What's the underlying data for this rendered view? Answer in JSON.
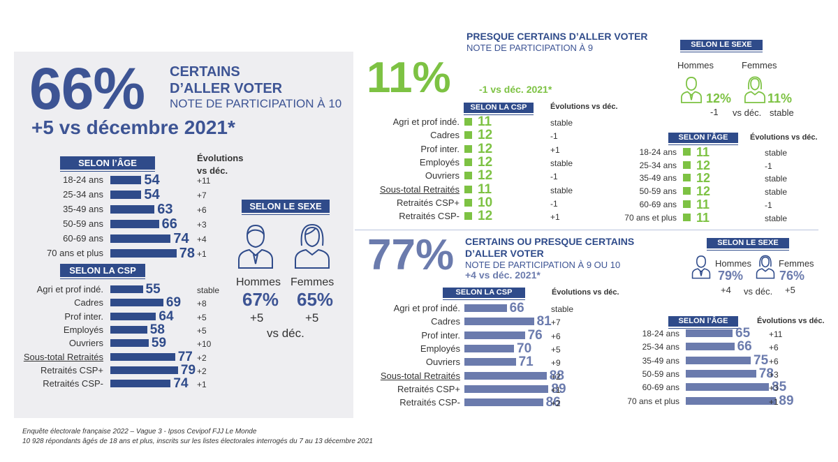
{
  "colors": {
    "navy": "#2f4b8a",
    "green": "#7dc243",
    "slate": "#6b7bad",
    "panel": "#eeeef1"
  },
  "certains": {
    "big": "66%",
    "title1": "CERTAINS",
    "title2": "D’ALLER VOTER",
    "subtitle": "NOTE DE PARTICIPATION À 10",
    "change": "+5 vs décembre 2021*",
    "age": {
      "header": "SELON l’ÂGE",
      "evo_header1": "Évolutions",
      "evo_header2": "vs déc.",
      "rows": [
        {
          "label": "18-24 ans",
          "value": 54,
          "evo": "+11"
        },
        {
          "label": "25-34 ans",
          "value": 54,
          "evo": "+7"
        },
        {
          "label": "35-49 ans",
          "value": 63,
          "evo": "+6"
        },
        {
          "label": "50-59 ans",
          "value": 66,
          "evo": "+3"
        },
        {
          "label": "60-69 ans",
          "value": 74,
          "evo": "+4"
        },
        {
          "label": "70 ans et plus",
          "value": 78,
          "evo": "+1"
        }
      ]
    },
    "csp": {
      "header": "SELON LA CSP",
      "rows": [
        {
          "label": "Agri et prof indé.",
          "value": 55,
          "evo": "stable"
        },
        {
          "label": "Cadres",
          "value": 69,
          "evo": "+8"
        },
        {
          "label": "Prof inter.",
          "value": 64,
          "evo": "+5"
        },
        {
          "label": "Employés",
          "value": 58,
          "evo": "+5"
        },
        {
          "label": "Ouvriers",
          "value": 59,
          "evo": "+10"
        },
        {
          "label": "Sous-total Retraités",
          "value": 77,
          "evo": "+2",
          "underline": true
        },
        {
          "label": "Retraités CSP+",
          "value": 79,
          "evo": "+2"
        },
        {
          "label": "Retraités CSP-",
          "value": 74,
          "evo": "+1"
        }
      ]
    },
    "sexe": {
      "header": "SELON LE SEXE",
      "hommes_label": "Hommes",
      "femmes_label": "Femmes",
      "hommes_value": "67%",
      "femmes_value": "65%",
      "hommes_evo": "+5",
      "femmes_evo": "+5",
      "vs": "vs déc."
    }
  },
  "presque": {
    "title": "PRESQUE CERTAINS D’ALLER VOTER",
    "subtitle": "NOTE DE PARTICIPATION À 9",
    "big": "11%",
    "change": "-1 vs déc. 2021*",
    "csp": {
      "header": "SELON LA CSP",
      "evo_header": "Évolutions vs déc.",
      "rows": [
        {
          "label": "Agri et prof indé.",
          "value": 11,
          "evo": "stable"
        },
        {
          "label": "Cadres",
          "value": 12,
          "evo": "-1"
        },
        {
          "label": "Prof inter.",
          "value": 12,
          "evo": "+1"
        },
        {
          "label": "Employés",
          "value": 12,
          "evo": "stable"
        },
        {
          "label": "Ouvriers",
          "value": 12,
          "evo": "-1"
        },
        {
          "label": "Sous-total Retraités",
          "value": 11,
          "evo": "stable",
          "underline": true
        },
        {
          "label": "Retraités CSP+",
          "value": 10,
          "evo": "-1"
        },
        {
          "label": "Retraités CSP-",
          "value": 12,
          "evo": "+1"
        }
      ]
    },
    "sexe": {
      "header": "SELON LE SEXE",
      "hommes_label": "Hommes",
      "femmes_label": "Femmes",
      "hommes_value": "12%",
      "femmes_value": "11%",
      "hommes_evo": "-1",
      "femmes_evo": "stable",
      "vs": "vs déc."
    },
    "age": {
      "header": "SELON l’ÂGE",
      "evo_header": "Évolutions vs déc.",
      "rows": [
        {
          "label": "18-24 ans",
          "value": 11,
          "evo": "stable"
        },
        {
          "label": "25-34 ans",
          "value": 12,
          "evo": "-1"
        },
        {
          "label": "35-49 ans",
          "value": 12,
          "evo": "stable"
        },
        {
          "label": "50-59 ans",
          "value": 12,
          "evo": "stable"
        },
        {
          "label": "60-69 ans",
          "value": 11,
          "evo": "-1"
        },
        {
          "label": "70 ans et plus",
          "value": 11,
          "evo": "stable"
        }
      ]
    }
  },
  "combined": {
    "big": "77%",
    "title1": "CERTAINS OU PRESQUE CERTAINS",
    "title2": "D’ALLER VOTER",
    "subtitle": "NOTE DE PARTICIPATION À 9 OU 10",
    "change": "+4 vs déc. 2021*",
    "csp": {
      "header": "SELON LA CSP",
      "evo_header": "Évolutions vs déc.",
      "rows": [
        {
          "label": "Agri et prof indé.",
          "value": 66,
          "evo": "stable"
        },
        {
          "label": "Cadres",
          "value": 81,
          "evo": "+7"
        },
        {
          "label": "Prof inter.",
          "value": 76,
          "evo": "+6"
        },
        {
          "label": "Employés",
          "value": 70,
          "evo": "+5"
        },
        {
          "label": "Ouvriers",
          "value": 71,
          "evo": "+9"
        },
        {
          "label": "Sous-total Retraités",
          "value": 88,
          "evo": "+2",
          "underline": true
        },
        {
          "label": "Retraités CSP+",
          "value": 89,
          "evo": "+1"
        },
        {
          "label": "Retraités CSP-",
          "value": 86,
          "evo": "+2"
        }
      ]
    },
    "sexe": {
      "header": "SELON LE SEXE",
      "hommes_label": "Hommes",
      "femmes_label": "Femmes",
      "hommes_value": "79%",
      "femmes_value": "76%",
      "hommes_evo": "+4",
      "femmes_evo": "+5",
      "vs": "vs déc."
    },
    "age": {
      "header": "SELON l’ÂGE",
      "evo_header": "Évolutions vs déc.",
      "rows": [
        {
          "label": "18-24 ans",
          "value": 65,
          "evo": "+11"
        },
        {
          "label": "25-34 ans",
          "value": 66,
          "evo": "+6"
        },
        {
          "label": "35-49 ans",
          "value": 75,
          "evo": "+6"
        },
        {
          "label": "50-59 ans",
          "value": 78,
          "evo": "+3"
        },
        {
          "label": "60-69 ans",
          "value": 85,
          "evo": "+3"
        },
        {
          "label": "70 ans et plus",
          "value": 89,
          "evo": "+1"
        }
      ]
    }
  },
  "footer": {
    "line1": "Enquête électorale française 2022 – Vague 3 - Ipsos Cevipof FJJ Le Monde",
    "line2": "10 928 répondants âgés de 18 ans et plus, inscrits sur les listes électorales interrogés du 7 au 13 décembre 2021"
  },
  "chart_data": [
    {
      "type": "bar",
      "section": "certains",
      "categories": [
        "18-24 ans",
        "25-34 ans",
        "35-49 ans",
        "50-59 ans",
        "60-69 ans",
        "70 ans et plus"
      ],
      "values": [
        54,
        54,
        63,
        66,
        74,
        78
      ]
    },
    {
      "type": "bar",
      "section": "certains",
      "categories": [
        "Agri et prof indé.",
        "Cadres",
        "Prof inter.",
        "Employés",
        "Ouvriers",
        "Sous-total Retraités",
        "Retraités CSP+",
        "Retraités CSP-"
      ],
      "values": [
        55,
        69,
        64,
        58,
        59,
        77,
        79,
        74
      ]
    },
    {
      "type": "bar",
      "section": "presque",
      "categories": [
        "Agri et prof indé.",
        "Cadres",
        "Prof inter.",
        "Employés",
        "Ouvriers",
        "Sous-total Retraités",
        "Retraités CSP+",
        "Retraités CSP-"
      ],
      "values": [
        11,
        12,
        12,
        12,
        12,
        11,
        10,
        12
      ]
    },
    {
      "type": "bar",
      "section": "presque",
      "categories": [
        "18-24 ans",
        "25-34 ans",
        "35-49 ans",
        "50-59 ans",
        "60-69 ans",
        "70 ans et plus"
      ],
      "values": [
        11,
        12,
        12,
        12,
        11,
        11
      ]
    },
    {
      "type": "bar",
      "section": "combined",
      "categories": [
        "Agri et prof indé.",
        "Cadres",
        "Prof inter.",
        "Employés",
        "Ouvriers",
        "Sous-total Retraités",
        "Retraités CSP+",
        "Retraités CSP-"
      ],
      "values": [
        66,
        81,
        76,
        70,
        71,
        88,
        89,
        86
      ]
    },
    {
      "type": "bar",
      "section": "combined",
      "categories": [
        "18-24 ans",
        "25-34 ans",
        "35-49 ans",
        "50-59 ans",
        "60-69 ans",
        "70 ans et plus"
      ],
      "values": [
        65,
        66,
        75,
        78,
        85,
        89
      ]
    }
  ]
}
